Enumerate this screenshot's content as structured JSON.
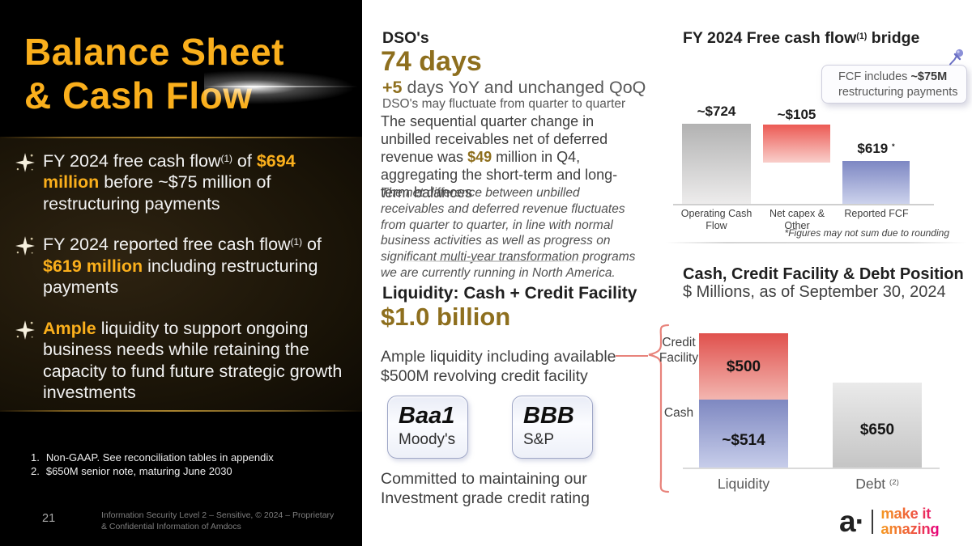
{
  "colors": {
    "accent_gold": "#FAAF1C",
    "dark_gold": "#8E6F1E",
    "bridge_red": "#EC5A54",
    "bridge_blue": "#7D87C3",
    "stack_red": "#E0514D",
    "stack_blue": "#7E88C1",
    "brace_salmon": "#E8837B",
    "logo_orange": "#F59A22",
    "logo_magenta": "#E6007E"
  },
  "left": {
    "title": {
      "line1": "Balance Sheet",
      "line2": "& Cash Flow"
    },
    "bullets": [
      {
        "segments": [
          {
            "t": "FY 2024 free cash flow"
          },
          {
            "t": "(1)",
            "s": "sup"
          },
          {
            "t": " of "
          },
          {
            "t": "$694 million",
            "s": "gold"
          },
          {
            "t": " before ~$75 million of restructuring payments"
          }
        ]
      },
      {
        "segments": [
          {
            "t": "FY 2024 reported free cash flow"
          },
          {
            "t": "(1)",
            "s": "sup"
          },
          {
            "t": " of "
          },
          {
            "t": "$619 million",
            "s": "gold"
          },
          {
            "t": " including restructuring payments"
          }
        ]
      },
      {
        "segments": [
          {
            "t": "Ample",
            "s": "gold"
          },
          {
            "t": " liquidity to support ongoing business needs while retaining the capacity to fund future strategic growth investments"
          }
        ]
      }
    ],
    "footnotes": [
      {
        "num": "1.",
        "text": "Non-GAAP. See reconciliation tables in appendix"
      },
      {
        "num": "2.",
        "text": "$650M senior note, maturing June 2030"
      }
    ],
    "page_number": "21",
    "footer": "Information Security Level 2 – Sensitive, © 2024 – Proprietary & Confidential Information of Amdocs"
  },
  "middle": {
    "dso": {
      "heading": "DSO's",
      "value": "74 days",
      "sub_segments": [
        {
          "t": "+5",
          "s": "dg"
        },
        {
          "t": " days YoY and unchanged QoQ"
        }
      ],
      "note": "DSO's may fluctuate from quarter to quarter",
      "para_segments": [
        {
          "t": "The sequential quarter change in unbilled receivables net of deferred revenue was "
        },
        {
          "t": "$49",
          "s": "dg"
        },
        {
          "t": " million in Q4, aggregating the short-term and long-term balances"
        }
      ],
      "disclaimer": "The net difference between unbilled receivables and deferred revenue fluctuates from quarter to quarter, in line with normal business activities as well as progress on significant multi-year transformation programs we are currently running in North America."
    },
    "liquidity": {
      "heading": "Liquidity: Cash + Credit Facility",
      "value": "$1.0 billion",
      "desc": "Ample liquidity including available $500M revolving credit facility",
      "commitment": "Committed to maintaining our Investment grade credit rating"
    },
    "ratings": [
      {
        "rating": "Baa1",
        "agency": "Moody's"
      },
      {
        "rating": "BBB",
        "agency": "S&P"
      }
    ]
  },
  "right": {
    "bridge": {
      "title_segments": [
        {
          "t": "FY 2024 Free cash flow"
        },
        {
          "t": "(1)",
          "s": "sup"
        },
        {
          "t": " bridge"
        }
      ],
      "callout_segments": [
        {
          "t": "FCF includes "
        },
        {
          "t": "~$75M",
          "s": "b"
        },
        {
          "t": " restructuring payments"
        }
      ],
      "bars": [
        {
          "label_segments": [
            {
              "t": "~$724"
            }
          ],
          "category": "Operating Cash Flow"
        },
        {
          "label_segments": [
            {
              "t": "~$105"
            }
          ],
          "category": "Net capex & Other"
        },
        {
          "label_segments": [
            {
              "t": "$619 "
            },
            {
              "t": "*",
              "s": "sup"
            }
          ],
          "category": "Reported FCF"
        }
      ],
      "note": "*Figures may not sum due to rounding"
    },
    "position": {
      "title": "Cash, Credit Facility & Debt Position",
      "subtitle": "$ Millions, as of September 30, 2024",
      "credit_label": "Credit Facility",
      "cash_label": "Cash",
      "values": {
        "credit": "$500",
        "cash": "~$514",
        "debt": "$650"
      },
      "categories": [
        {
          "label_segments": [
            {
              "t": "Liquidity"
            }
          ]
        },
        {
          "label_segments": [
            {
              "t": "Debt "
            },
            {
              "t": "(2)",
              "s": "sup"
            }
          ]
        }
      ]
    }
  },
  "logo": {
    "mark": "a·",
    "tagline_line1": "make it",
    "tagline_line2": "amazing"
  },
  "chart_data": [
    {
      "type": "bar",
      "subtype": "waterfall-bridge",
      "title": "FY 2024 Free cash flow(1) bridge",
      "categories": [
        "Operating Cash Flow",
        "Net capex & Other",
        "Reported FCF"
      ],
      "values": [
        724,
        -105,
        619
      ],
      "value_labels": [
        "~$724",
        "~$105",
        "$619 *"
      ],
      "annotation": "FCF includes ~$75M restructuring payments",
      "footnote": "*Figures may not sum due to rounding",
      "legend_position": "none",
      "grid": false
    },
    {
      "type": "bar",
      "subtype": "stacked",
      "title": "Cash, Credit Facility & Debt Position",
      "subtitle": "$ Millions, as of September 30, 2024",
      "categories": [
        "Liquidity",
        "Debt (2)"
      ],
      "series": [
        {
          "name": "Credit Facility",
          "values": [
            500,
            0
          ]
        },
        {
          "name": "Cash",
          "values": [
            514,
            0
          ]
        },
        {
          "name": "Debt",
          "values": [
            0,
            650
          ]
        }
      ],
      "value_labels": {
        "credit": "$500",
        "cash": "~$514",
        "debt": "$650"
      },
      "legend_position": "left-brace-labels",
      "grid": false
    }
  ]
}
